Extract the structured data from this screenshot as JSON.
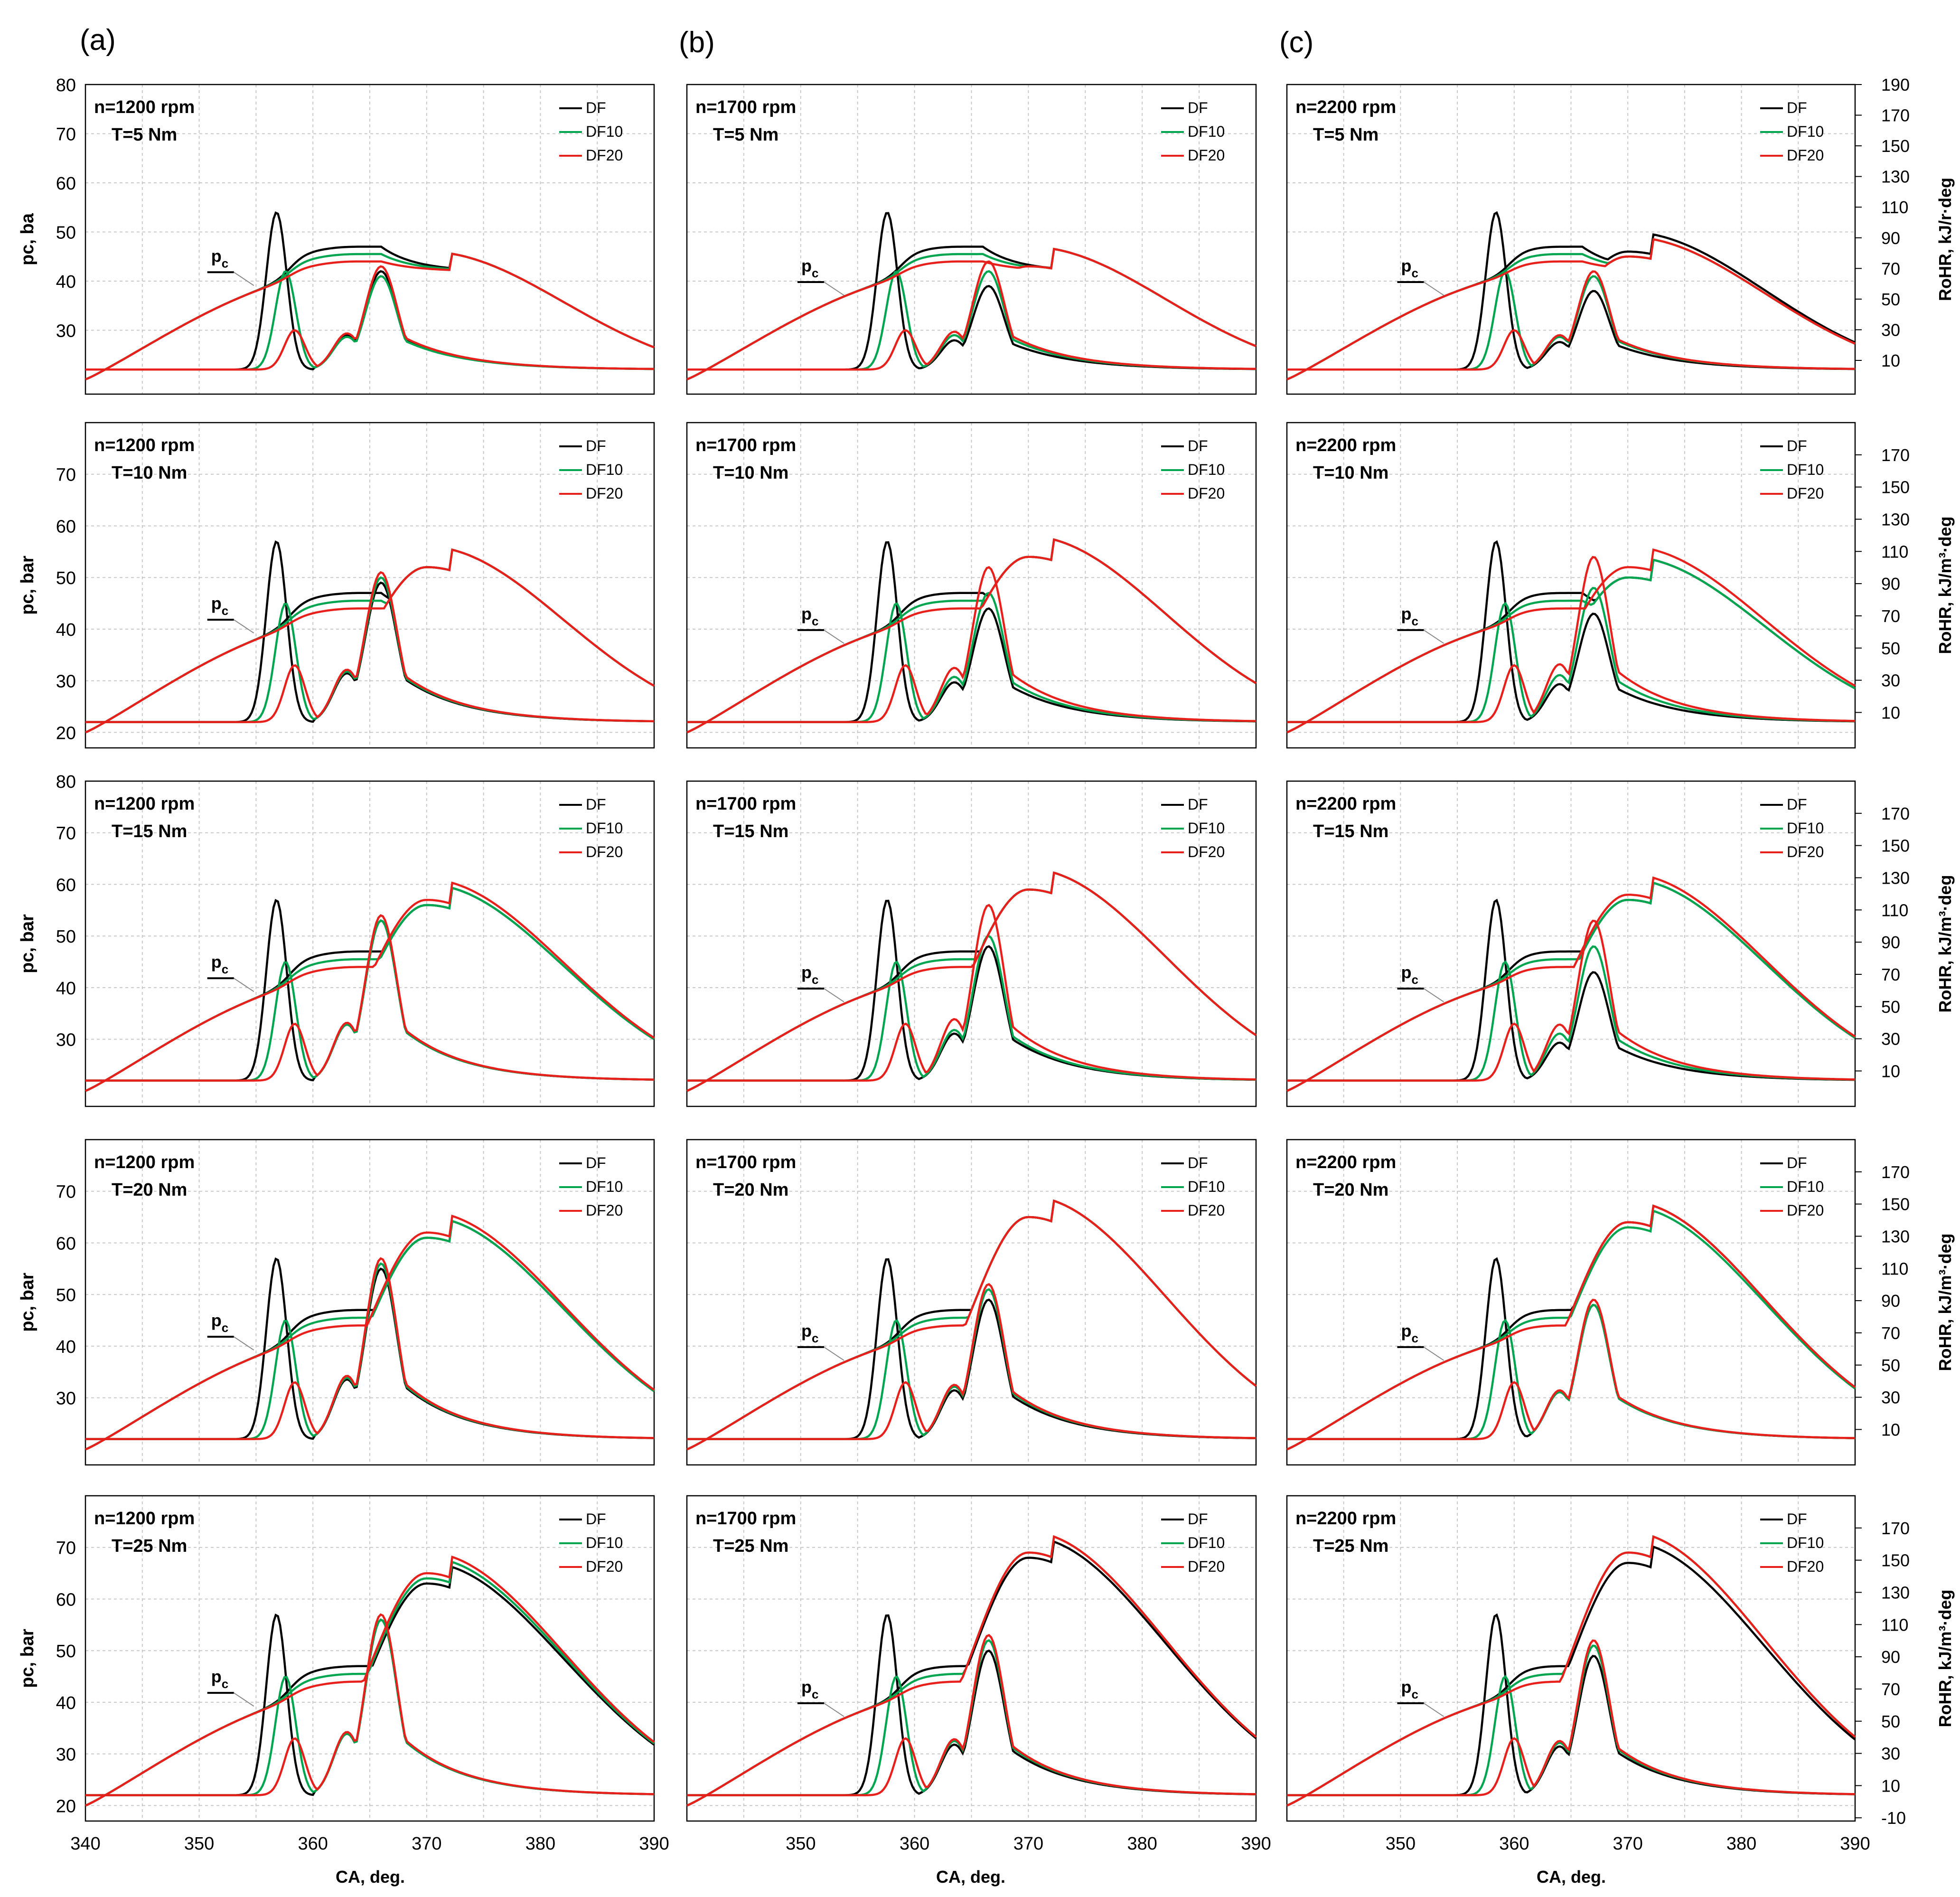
{
  "figure": {
    "column_labels": [
      "(a)",
      "(b)",
      "(c)"
    ],
    "x_axis_label": "CA, deg.",
    "x_ticks": [
      340,
      350,
      360,
      370,
      380,
      390
    ],
    "x_tick_labels_first": [
      "340",
      "350",
      "360",
      "370",
      "380",
      "390"
    ],
    "x_tick_labels_other": [
      "350",
      "360",
      "370",
      "380",
      "390"
    ],
    "left_axis_labels": [
      "pc, ba",
      "pc, bar",
      "pc, bar",
      "pc, bar",
      "pc, bar"
    ],
    "right_axis_labels": [
      "RoHR, kJ/r·deg",
      "RoHR, kJ/m³·deg",
      "RoHR, kJ/m³·deg",
      "RoHR, kJ/m³·deg",
      "RoHR, kJ/m³·deg"
    ],
    "pc_label_main": "p",
    "pc_label_sub": "c",
    "legend": [
      "DF",
      "DF10",
      "DF20"
    ],
    "colors": {
      "DF": "#000000",
      "DF10": "#00a550",
      "DF20": "#e8201c",
      "grid": "#c8c8c8",
      "frame": "#000000"
    }
  },
  "chart_data": [
    {
      "type": "line",
      "rows": [
        "T=5 Nm",
        "T=10 Nm",
        "T=15 Nm",
        "T=20 Nm",
        "T=25 Nm"
      ],
      "columns": [
        "n=1200 rpm",
        "n=1700 rpm",
        "n=2200 rpm"
      ],
      "x": {
        "label": "CA, deg.",
        "range": [
          340,
          390
        ]
      },
      "y_left": {
        "label": "pc, bar",
        "ticks_by_row": [
          [
            30,
            40,
            50,
            60,
            70,
            80
          ],
          [
            20,
            30,
            40,
            50,
            60,
            70
          ],
          [
            30,
            40,
            50,
            60,
            70,
            80
          ],
          [
            30,
            40,
            50,
            60,
            70
          ],
          [
            20,
            30,
            40,
            50,
            60,
            70
          ]
        ]
      },
      "y_right": {
        "label": "RoHR, kJ/m³·deg",
        "ticks_by_row": [
          [
            10,
            30,
            50,
            70,
            90,
            110,
            130,
            150,
            170,
            190
          ],
          [
            10,
            30,
            50,
            70,
            90,
            110,
            130,
            150,
            170
          ],
          [
            10,
            30,
            50,
            70,
            90,
            110,
            130,
            150,
            170
          ],
          [
            10,
            30,
            50,
            70,
            90,
            110,
            130,
            150,
            170
          ],
          [
            -10,
            10,
            30,
            50,
            70,
            90,
            110,
            130,
            150,
            170
          ]
        ]
      },
      "series": [
        "DF",
        "DF10",
        "DF20"
      ],
      "pressure_peak_bar": [
        [
          [
            46,
            46,
            46
          ],
          [
            47,
            47,
            47
          ],
          [
            50,
            49,
            49
          ]
        ],
        [
          [
            56,
            56,
            56
          ],
          [
            58,
            58,
            58
          ],
          [
            54,
            54,
            56
          ]
        ],
        [
          [
            60,
            60,
            61
          ],
          [
            63,
            63,
            63
          ],
          [
            61,
            61,
            62
          ]
        ],
        [
          [
            65,
            65,
            66
          ],
          [
            69,
            69,
            69
          ],
          [
            68,
            67,
            68
          ]
        ],
        [
          [
            67,
            68,
            69
          ],
          [
            72,
            73,
            73
          ],
          [
            71,
            73,
            73
          ]
        ]
      ],
      "rohr_main_peak": [
        [
          [
            42,
            41,
            43
          ],
          [
            39,
            42,
            44
          ],
          [
            38,
            41,
            42
          ]
        ],
        [
          [
            49,
            50,
            51
          ],
          [
            44,
            47,
            52
          ],
          [
            43,
            48,
            54
          ]
        ],
        [
          [
            53,
            53,
            54
          ],
          [
            48,
            50,
            56
          ],
          [
            43,
            48,
            53
          ]
        ],
        [
          [
            55,
            56,
            57
          ],
          [
            49,
            51,
            52
          ],
          [
            48,
            48,
            49
          ]
        ],
        [
          [
            56,
            56,
            57
          ],
          [
            50,
            52,
            53
          ],
          [
            49,
            51,
            52
          ]
        ]
      ]
    }
  ]
}
